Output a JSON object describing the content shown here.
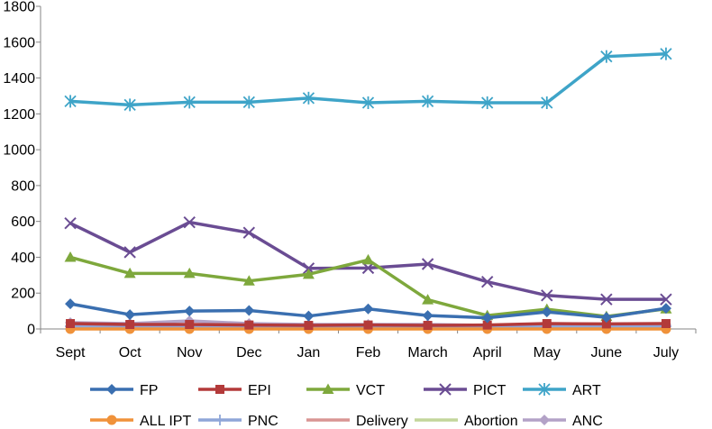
{
  "chart_data": {
    "type": "line",
    "title": "",
    "xlabel": "",
    "ylabel": "",
    "ylim": [
      0,
      1800
    ],
    "yticks": [
      0,
      200,
      400,
      600,
      800,
      1000,
      1200,
      1400,
      1600,
      1800
    ],
    "categories": [
      "Sept",
      "Oct",
      "Nov",
      "Dec",
      "Jan",
      "Feb",
      "March",
      "April",
      "May",
      "June",
      "July"
    ],
    "legend_position": "bottom",
    "series": [
      {
        "name": "FP",
        "color": "#3a6fb0",
        "marker": "diamond",
        "values": [
          140,
          80,
          100,
          103,
          72,
          112,
          75,
          62,
          95,
          65,
          115
        ]
      },
      {
        "name": "EPI",
        "color": "#b33a3a",
        "marker": "square",
        "values": [
          30,
          25,
          25,
          22,
          20,
          22,
          20,
          22,
          30,
          28,
          30
        ]
      },
      {
        "name": "VCT",
        "color": "#7ea83c",
        "marker": "triangle",
        "values": [
          400,
          310,
          310,
          268,
          305,
          385,
          163,
          75,
          110,
          70,
          112
        ]
      },
      {
        "name": "PICT",
        "color": "#6a4c93",
        "marker": "x",
        "values": [
          590,
          428,
          595,
          537,
          338,
          340,
          362,
          263,
          187,
          165,
          165
        ]
      },
      {
        "name": "ART",
        "color": "#3ea4c8",
        "marker": "star",
        "values": [
          1270,
          1250,
          1265,
          1265,
          1288,
          1262,
          1270,
          1262,
          1262,
          1520,
          1535
        ]
      },
      {
        "name": "ALL IPT",
        "color": "#f0923a",
        "marker": "circle",
        "values": [
          0,
          0,
          0,
          0,
          0,
          0,
          0,
          0,
          0,
          0,
          0
        ]
      },
      {
        "name": "PNC",
        "color": "#8fa6d8",
        "marker": "plus",
        "values": [
          15,
          15,
          15,
          15,
          15,
          15,
          15,
          15,
          15,
          15,
          15
        ]
      },
      {
        "name": "Delivery",
        "color": "#d99594",
        "marker": "none",
        "values": [
          10,
          10,
          10,
          10,
          10,
          10,
          10,
          10,
          10,
          10,
          10
        ]
      },
      {
        "name": "Abortion",
        "color": "#c3d69b",
        "marker": "none",
        "values": [
          5,
          5,
          5,
          5,
          5,
          5,
          5,
          5,
          5,
          5,
          5
        ]
      },
      {
        "name": "ANC",
        "color": "#b3a2c7",
        "marker": "diamond",
        "values": [
          35,
          30,
          45,
          30,
          25,
          25,
          25,
          20,
          20,
          25,
          25
        ]
      }
    ]
  }
}
